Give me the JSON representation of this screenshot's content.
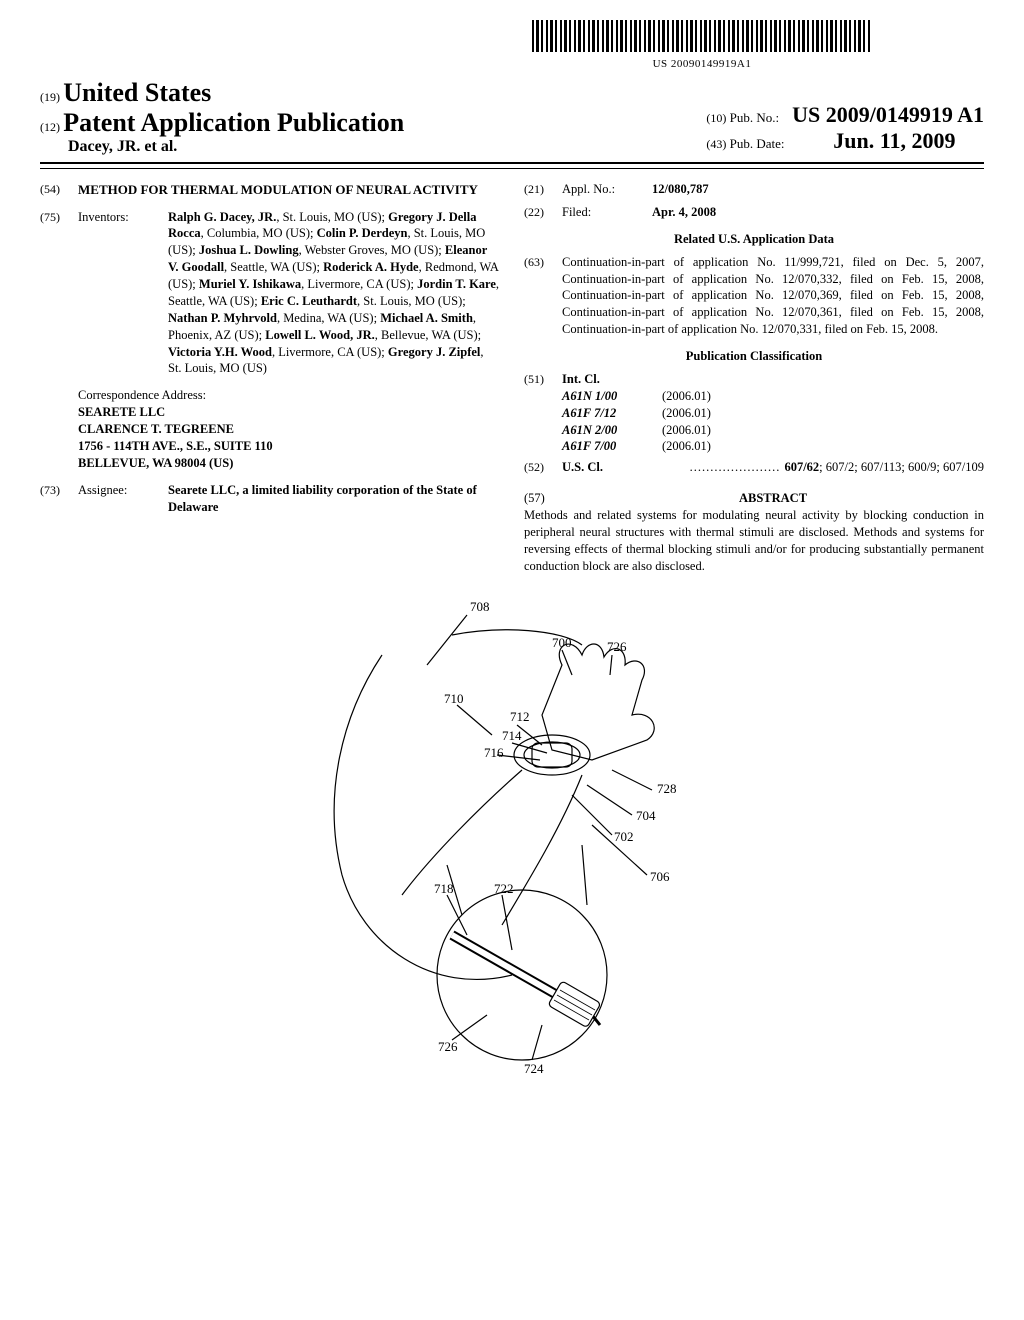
{
  "barcode_label": "US 20090149919A1",
  "header": {
    "code19": "(19)",
    "country": "United States",
    "code12": "(12)",
    "pub_type": "Patent Application Publication",
    "authors": "Dacey, JR. et al.",
    "code10": "(10)",
    "pubno_label": "Pub. No.:",
    "pubno": "US 2009/0149919 A1",
    "code43": "(43)",
    "date_label": "Pub. Date:",
    "date": "Jun. 11, 2009"
  },
  "left": {
    "code54": "(54)",
    "title": "METHOD FOR THERMAL MODULATION OF NEURAL ACTIVITY",
    "code75": "(75)",
    "inventors_label": "Inventors:",
    "inventors_html": "<b>Ralph G. Dacey, JR.</b>, St. Louis, MO (US); <b>Gregory J. Della Rocca</b>, Columbia, MO (US); <b>Colin P. Derdeyn</b>, St. Louis, MO (US); <b>Joshua L. Dowling</b>, Webster Groves, MO (US); <b>Eleanor V. Goodall</b>, Seattle, WA (US); <b>Roderick A. Hyde</b>, Redmond, WA (US); <b>Muriel Y. Ishikawa</b>, Livermore, CA (US); <b>Jordin T. Kare</b>, Seattle, WA (US); <b>Eric C. Leuthardt</b>, St. Louis, MO (US); <b>Nathan P. Myhrvold</b>, Medina, WA (US); <b>Michael A. Smith</b>, Phoenix, AZ (US); <b>Lowell L. Wood, JR.</b>, Bellevue, WA (US); <b>Victoria Y.H. Wood</b>, Livermore, CA (US); <b>Gregory J. Zipfel</b>, St. Louis, MO (US)",
    "corr_label": "Correspondence Address:",
    "corr_l1": "SEARETE LLC",
    "corr_l2": "CLARENCE T. TEGREENE",
    "corr_l3": "1756 - 114TH AVE., S.E., SUITE 110",
    "corr_l4": "BELLEVUE, WA 98004 (US)",
    "code73": "(73)",
    "assignee_label": "Assignee:",
    "assignee": "Searete LLC, a limited liability corporation of the State of Delaware"
  },
  "right": {
    "code21": "(21)",
    "applno_label": "Appl. No.:",
    "applno": "12/080,787",
    "code22": "(22)",
    "filed_label": "Filed:",
    "filed": "Apr. 4, 2008",
    "related_head": "Related U.S. Application Data",
    "code63": "(63)",
    "related_text": "Continuation-in-part of application No. 11/999,721, filed on Dec. 5, 2007, Continuation-in-part of application No. 12/070,332, filed on Feb. 15, 2008, Continuation-in-part of application No. 12/070,369, filed on Feb. 15, 2008, Continuation-in-part of application No. 12/070,361, filed on Feb. 15, 2008, Continuation-in-part of application No. 12/070,331, filed on Feb. 15, 2008.",
    "pubclass_head": "Publication Classification",
    "code51": "(51)",
    "intcl_label": "Int. Cl.",
    "intcl": [
      {
        "c": "A61N 1/00",
        "y": "(2006.01)"
      },
      {
        "c": "A61F 7/12",
        "y": "(2006.01)"
      },
      {
        "c": "A61N 2/00",
        "y": "(2006.01)"
      },
      {
        "c": "A61F 7/00",
        "y": "(2006.01)"
      }
    ],
    "code52": "(52)",
    "uscl_label": "U.S. Cl.",
    "uscl_lead": " ...................... ",
    "uscl_main": "607/62",
    "uscl_rest": "; 607/2; 607/113; 600/9; 607/109",
    "code57": "(57)",
    "abstract_head": "ABSTRACT",
    "abstract_text": "Methods and related systems for modulating neural activity by blocking conduction in peripheral neural structures with thermal stimuli are disclosed. Methods and systems for reversing effects of thermal blocking stimuli and/or for producing substantially permanent conduction block are also disclosed."
  },
  "figure": {
    "labels": {
      "n700": "700",
      "n702": "702",
      "n704": "704",
      "n706": "706",
      "n708": "708",
      "n710": "710",
      "n712": "712",
      "n714": "714",
      "n716": "716",
      "n718": "718",
      "n722": "722",
      "n724": "724",
      "n726": "726",
      "n726b": "726",
      "n728": "728"
    }
  }
}
